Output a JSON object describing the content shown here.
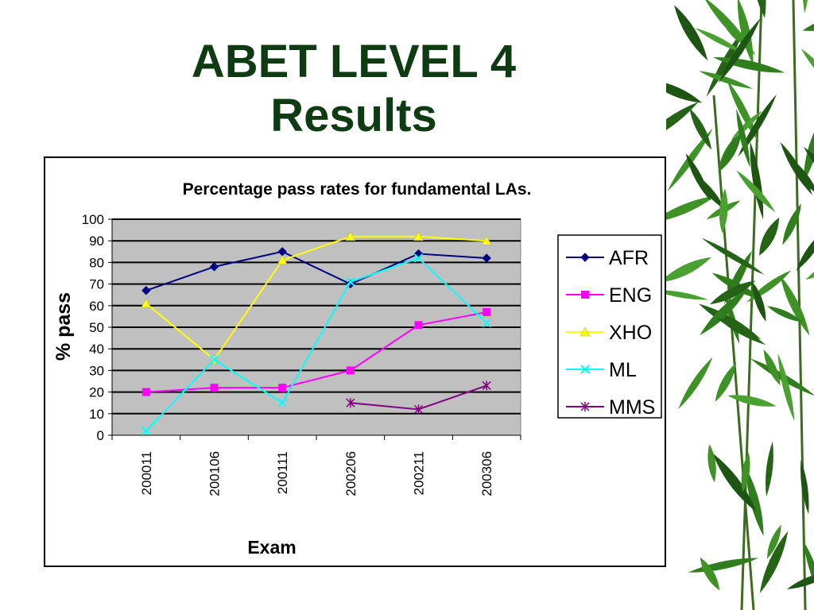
{
  "slide": {
    "title_line1": "ABET LEVEL 4",
    "title_line2": "Results"
  },
  "decoration": {
    "icon": "bamboo-leaves-icon",
    "color": "#2f7d1c"
  },
  "chart_data": {
    "type": "line",
    "title": "Percentage pass rates for fundamental LAs.",
    "xlabel": "Exam",
    "ylabel": "% pass",
    "categories": [
      "200011",
      "200106",
      "200111",
      "200206",
      "200211",
      "200306"
    ],
    "ylim": [
      0,
      100
    ],
    "yticks": [
      0,
      10,
      20,
      30,
      40,
      50,
      60,
      70,
      80,
      90,
      100
    ],
    "grid": true,
    "plot_background": "#c0c0c0",
    "legend_position": "right",
    "series": [
      {
        "name": "AFR",
        "color": "#000080",
        "marker": "diamond",
        "values": [
          67,
          78,
          85,
          70,
          84,
          82
        ]
      },
      {
        "name": "ENG",
        "color": "#ff00ff",
        "marker": "square",
        "values": [
          20,
          22,
          22,
          30,
          51,
          57
        ]
      },
      {
        "name": "XHO",
        "color": "#ffff00",
        "marker": "triangle",
        "values": [
          61,
          35,
          81,
          92,
          92,
          90
        ]
      },
      {
        "name": "ML",
        "color": "#00ffff",
        "marker": "x",
        "values": [
          2,
          35,
          15,
          71,
          82,
          52
        ]
      },
      {
        "name": "MMS",
        "color": "#800080",
        "marker": "star",
        "values": [
          null,
          null,
          null,
          15,
          12,
          23
        ]
      }
    ]
  }
}
